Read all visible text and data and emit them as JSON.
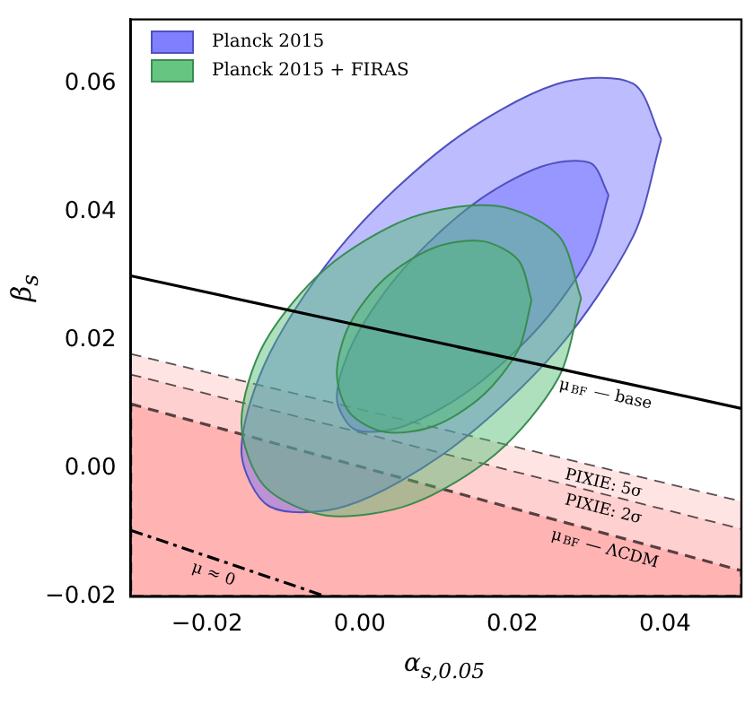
{
  "chart_data": {
    "type": "area",
    "xlabel": "α$_{s,0.05}$",
    "ylabel": "β$_{s}$",
    "legend": "top left",
    "xlim": [
      -0.03,
      0.05
    ],
    "ylim": [
      -0.02,
      0.07
    ],
    "xticks": [
      {
        "value": -0.02,
        "label": "−0.02"
      },
      {
        "value": 0,
        "label": "0.00"
      },
      {
        "value": 0.02,
        "label": "0.02"
      },
      {
        "value": 0.04,
        "label": "0.04"
      }
    ],
    "yticks": [
      {
        "value": -0.02,
        "label": "−0.02"
      },
      {
        "value": 0,
        "label": "0.00"
      },
      {
        "value": 0.02,
        "label": "0.02"
      },
      {
        "value": 0.04,
        "label": "0.04"
      },
      {
        "value": 0.06,
        "label": "0.06"
      }
    ],
    "series": [
      {
        "type": "area",
        "name": "PIXIE: 5σ",
        "color": "#ffe4e4",
        "line_style": "dashed",
        "x": [
          -0.03,
          0.05,
          0.05,
          -0.03
        ],
        "values": [
          0.0178,
          -0.0052,
          -0.02,
          -0.02
        ]
      },
      {
        "type": "area",
        "name": "PIXIE: 2σ",
        "color": "#ffd0d0",
        "line_style": "dashed",
        "x": [
          -0.03,
          0.05,
          0.05,
          -0.03
        ],
        "values": [
          0.0146,
          -0.0095,
          -0.02,
          -0.02
        ]
      },
      {
        "type": "area",
        "name": "μ$_{BF}$ — ΛCDM",
        "color": "#ffb3b3",
        "line_style": "dashed",
        "x": [
          -0.03,
          0.05,
          0.05,
          -0.03
        ],
        "values": [
          0.01,
          -0.016,
          -0.02,
          -0.02
        ]
      },
      {
        "type": "area",
        "name": "Planck 2015",
        "color": "#6a6aff",
        "x": [
          0.0395,
          0.0358,
          0.0258,
          0.012,
          -0.00175,
          -0.0118,
          -0.0155,
          -0.0118,
          -0.00175,
          0.012,
          0.0258,
          0.0358
        ],
        "values": [
          0.0513,
          0.06,
          0.0599,
          0.0509,
          0.0356,
          0.0179,
          0.0027,
          -0.006,
          -0.0059,
          0.0031,
          0.0184,
          0.0361
        ]
      },
      {
        "type": "area",
        "color": "#6a6aff",
        "x": [
          0.0326,
          0.0302,
          0.0237,
          0.0148,
          0.0059,
          -0.0006,
          -0.003,
          -0.0006,
          0.0059,
          0.0148,
          0.0237,
          0.0302
        ],
        "values": [
          0.0426,
          0.0476,
          0.047,
          0.0411,
          0.0313,
          0.0203,
          0.011,
          0.006,
          0.0066,
          0.0125,
          0.0223,
          0.0333
        ]
      },
      {
        "type": "area",
        "name": "Planck 2015 + FIRAS",
        "color": "#4cbb6c",
        "x": [
          0.029,
          0.026,
          0.0179,
          0.0068,
          -0.0044,
          -0.0125,
          -0.0155,
          -0.0125,
          -0.0044,
          0.0068,
          0.0179,
          0.026
        ],
        "values": [
          0.0265,
          0.0363,
          0.0409,
          0.0391,
          0.0312,
          0.0195,
          0.0071,
          -0.0028,
          -0.0074,
          -0.0056,
          0.0023,
          0.014
        ]
      },
      {
        "type": "area",
        "color": "#4cbb6c",
        "x": [
          0.0225,
          0.0208,
          0.0161,
          0.0098,
          0.0034,
          -0.0013,
          -0.003,
          -0.0013,
          0.0034,
          0.0098,
          0.0161,
          0.0208
        ],
        "values": [
          0.0262,
          0.0324,
          0.0354,
          0.0344,
          0.0297,
          0.0225,
          0.0148,
          0.0086,
          0.0056,
          0.0066,
          0.0113,
          0.0185
        ]
      },
      {
        "type": "line",
        "name": "μ$_{BF}$ — base",
        "color": "#000000",
        "line_style": "solid",
        "x": [
          -0.03,
          0.05
        ],
        "values": [
          0.03,
          0.0093
        ]
      },
      {
        "type": "line",
        "name": "μ ≈ 0",
        "color": "#000000",
        "line_style": "dashdot",
        "x": [
          -0.03,
          -0.0045
        ],
        "values": [
          -0.0097,
          -0.02
        ]
      }
    ]
  }
}
